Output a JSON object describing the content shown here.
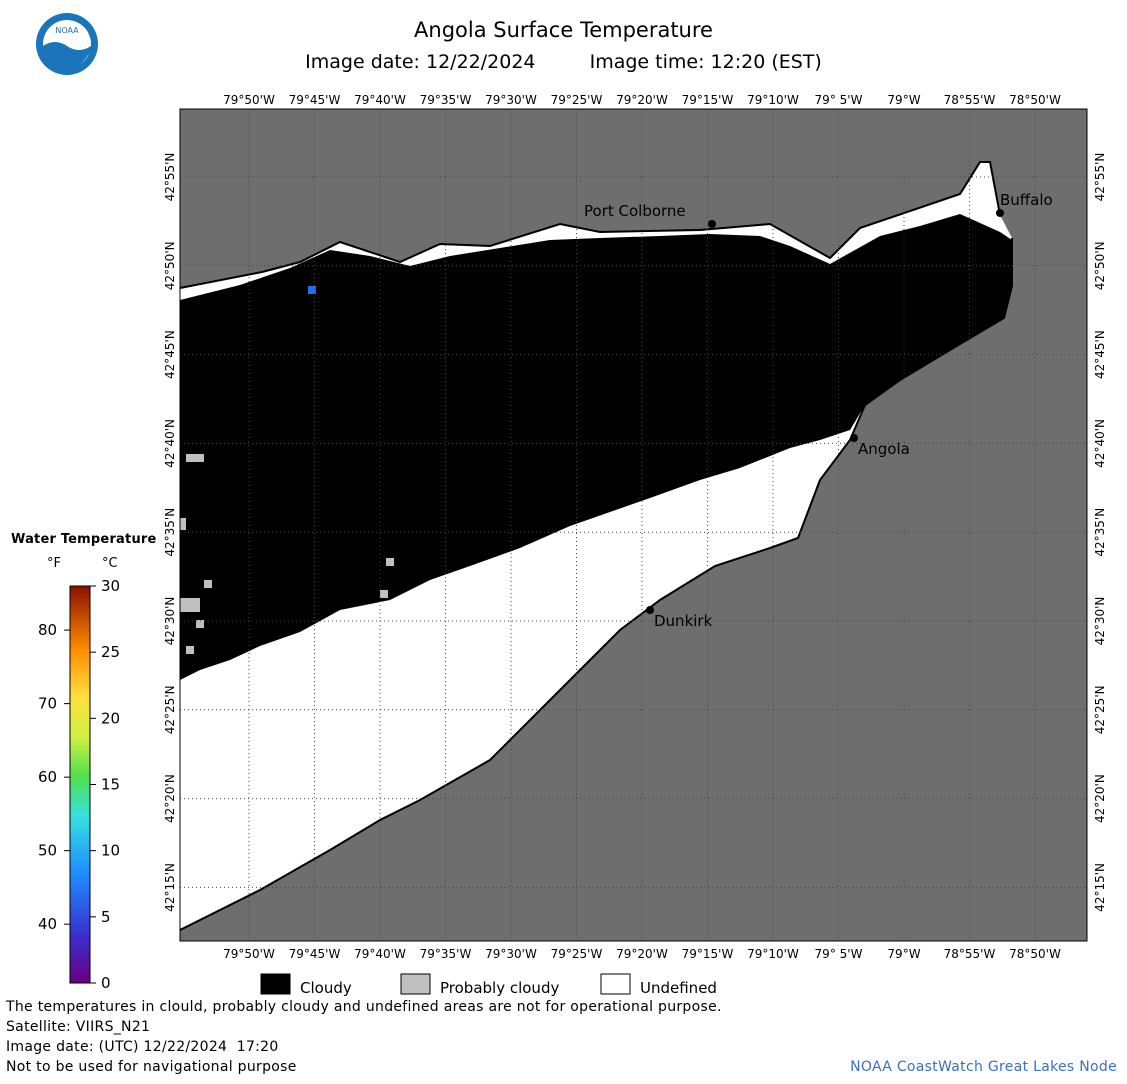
{
  "header": {
    "title": "Angola Surface Temperature",
    "image_date": "Image date: 12/22/2024",
    "image_time": "Image time: 12:20 (EST)"
  },
  "logo": {
    "text": "NOAA",
    "colors": {
      "outer": "#1a75bb",
      "inner": "#ffffff",
      "bird": "#1a75bb"
    }
  },
  "map": {
    "lon_labels": [
      "79°50'W",
      "79°45'W",
      "79°40'W",
      "79°35'W",
      "79°30'W",
      "79°25'W",
      "79°20'W",
      "79°15'W",
      "79°10'W",
      "79° 5'W",
      "79°W",
      "78°55'W",
      "78°50'W"
    ],
    "lat_labels": [
      "42°55'N",
      "42°50'N",
      "42°45'N",
      "42°40'N",
      "42°35'N",
      "42°30'N",
      "42°25'N",
      "42°20'N",
      "42°15'N"
    ],
    "places": [
      {
        "name": "Port Colborne"
      },
      {
        "name": "Buffalo"
      },
      {
        "name": "Angola"
      },
      {
        "name": "Dunkirk"
      }
    ],
    "colors": {
      "land": "#6e6e6e",
      "cloudy": "#000000",
      "probably_cloudy": "#c0c0c0",
      "undefined": "#ffffff",
      "water_pixel": "#1e6fe8"
    }
  },
  "scale": {
    "title": "Water Temperature",
    "unit_f": "°F",
    "unit_c": "°C",
    "f_ticks": [
      "40",
      "50",
      "60",
      "70",
      "80"
    ],
    "c_ticks": [
      "0",
      "5",
      "10",
      "15",
      "20",
      "25",
      "30"
    ]
  },
  "legend": {
    "cloudy": "Cloudy",
    "probably_cloudy": "Probably cloudy",
    "undefined": "Undefined"
  },
  "footer": {
    "disclaimer": "The temperatures in clould, probably cloudy and undefined areas are not for operational purpose.",
    "satellite": "Satellite: VIIRS_N21",
    "utc_date": "Image date: (UTC) 12/22/2024  17:20",
    "nav_warning": "Not to be used for navigational purpose",
    "node": "NOAA CoastWatch Great Lakes Node"
  }
}
